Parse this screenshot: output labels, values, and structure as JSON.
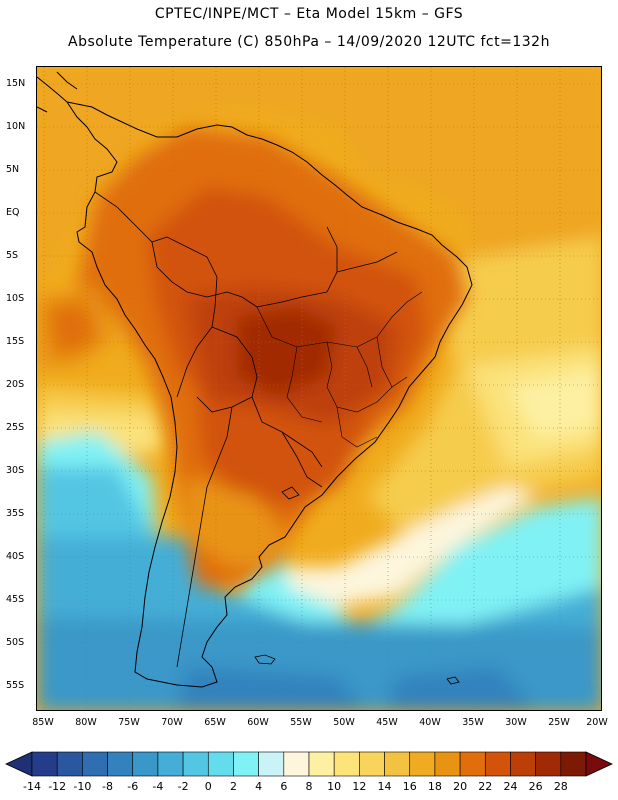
{
  "header": {
    "line1": "CPTEC/INPE/MCT –   Eta Model 15km – GFS",
    "line2": "Absolute Temperature (C) 850hPa – 14/09/2020 12UTC fct=132h"
  },
  "map": {
    "region": "South America",
    "variable": "Absolute Temperature (C) 850hPa",
    "lat_labels": [
      "15N",
      "10N",
      "5N",
      "EQ",
      "5S",
      "10S",
      "15S",
      "20S",
      "25S",
      "30S",
      "35S",
      "40S",
      "45S",
      "50S",
      "55S"
    ],
    "lon_labels": [
      "85W",
      "80W",
      "75W",
      "70W",
      "65W",
      "60W",
      "55W",
      "50W",
      "45W",
      "40W",
      "35W",
      "30W",
      "25W",
      "20W"
    ]
  },
  "colorbar": {
    "ticks": [
      "-14",
      "-12",
      "-10",
      "-8",
      "-6",
      "-4",
      "-2",
      "0",
      "2",
      "4",
      "6",
      "8",
      "10",
      "12",
      "14",
      "16",
      "18",
      "20",
      "22",
      "24",
      "26",
      "28"
    ],
    "colors": [
      "#243d8a",
      "#2a57a0",
      "#2f6eb0",
      "#3382bd",
      "#3a98c8",
      "#44aed6",
      "#52c6e3",
      "#63dcec",
      "#80f2f5",
      "#c9f3f6",
      "#fdf6dd",
      "#fdf0a2",
      "#fde47a",
      "#f8d45c",
      "#f3c241",
      "#efab22",
      "#e99313",
      "#e06e0d",
      "#d25309",
      "#bd3f08",
      "#a12a06",
      "#7d1a05"
    ],
    "under_color": "#1f3075",
    "over_color": "#7a0b0c"
  }
}
